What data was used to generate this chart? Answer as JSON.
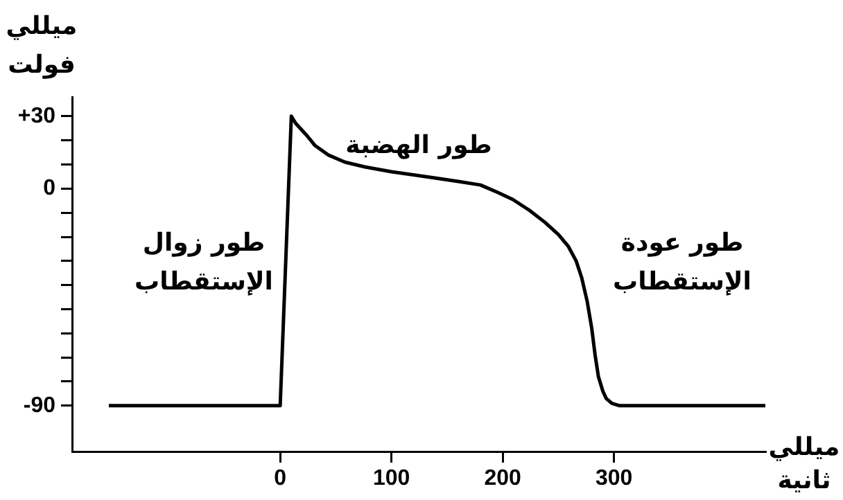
{
  "chart_data": {
    "type": "line",
    "xlabel": "ميللي\nثانية",
    "ylabel": "ميللي\nفولت",
    "x": [
      -154,
      0,
      10,
      14,
      19,
      24,
      31,
      43,
      58,
      76,
      100,
      138,
      160,
      180,
      195,
      209,
      224,
      238,
      250,
      259,
      266,
      271,
      276,
      280,
      283,
      286,
      290,
      293,
      298,
      305,
      436
    ],
    "series": [
      {
        "color": "#000000",
        "values": [
          -90,
          -90,
          30,
          27,
          24.5,
          22,
          18,
          14,
          11,
          9,
          7,
          4.5,
          3,
          1.5,
          -1.5,
          -4.5,
          -9,
          -14,
          -19,
          -24,
          -30,
          -37,
          -47,
          -58,
          -69,
          -78,
          -84,
          -87,
          -89,
          -90,
          -90
        ]
      }
    ],
    "xlim": [
      -187,
      436
    ],
    "xticks": [
      0,
      100,
      200,
      300
    ],
    "ylim": [
      -109,
      38
    ],
    "yticks": [
      {
        "value": 30,
        "label": "+30"
      },
      {
        "value": 20,
        "label": null
      },
      {
        "value": 10,
        "label": null
      },
      0,
      {
        "value": -10,
        "label": null
      },
      {
        "value": -20,
        "label": null
      },
      {
        "value": -30,
        "label": null
      },
      {
        "value": -40,
        "label": null
      },
      {
        "value": -50,
        "label": null
      },
      {
        "value": -60,
        "label": null
      },
      {
        "value": -70,
        "label": null
      },
      {
        "value": -80,
        "label": null
      },
      -90
    ],
    "annotations": [
      "طور زوال\nالإستقطاب",
      "طور الهضبة",
      "طور عودة\nالإستقطاب"
    ],
    "grid": false,
    "legend": false,
    "marker": "none",
    "line_style": "solid"
  }
}
